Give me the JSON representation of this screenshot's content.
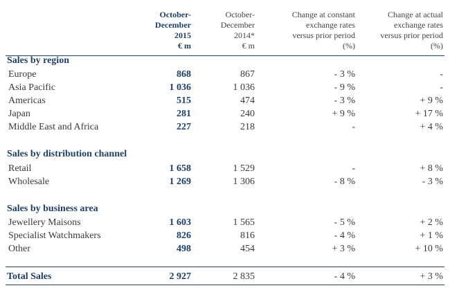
{
  "header": {
    "current": [
      "October-",
      "December",
      "2015",
      "€ m"
    ],
    "prior": [
      "October-",
      "December",
      "2014*",
      "€ m"
    ],
    "constant": [
      "Change at constant",
      "exchange rates",
      "versus prior period",
      "(%)"
    ],
    "actual": [
      "Change at actual",
      "exchange rates",
      "versus prior period",
      "(%)"
    ]
  },
  "sections": [
    {
      "title": "Sales by region",
      "rows": [
        {
          "label": "Europe",
          "current": "868",
          "prior": "867",
          "constant": "- 3 %",
          "actual": "-"
        },
        {
          "label": "Asia Pacific",
          "current": "1 036",
          "prior": "1 036",
          "constant": "- 9 %",
          "actual": "-"
        },
        {
          "label": "Americas",
          "current": "515",
          "prior": "474",
          "constant": "- 3 %",
          "actual": "+ 9 %"
        },
        {
          "label": "Japan",
          "current": "281",
          "prior": "240",
          "constant": "+ 9 %",
          "actual": "+ 17 %"
        },
        {
          "label": "Middle East and Africa",
          "current": "227",
          "prior": "218",
          "constant": "-",
          "actual": "+ 4 %"
        }
      ]
    },
    {
      "title": "Sales by distribution channel",
      "rows": [
        {
          "label": "Retail",
          "current": "1 658",
          "prior": "1 529",
          "constant": "-",
          "actual": "+ 8 %"
        },
        {
          "label": "Wholesale",
          "current": "1 269",
          "prior": "1 306",
          "constant": "- 8 %",
          "actual": "- 3 %"
        }
      ]
    },
    {
      "title": "Sales by business area",
      "rows": [
        {
          "label": "Jewellery Maisons",
          "current": "1 603",
          "prior": "1 565",
          "constant": "- 5 %",
          "actual": "+ 2 %"
        },
        {
          "label": "Specialist Watchmakers",
          "current": "826",
          "prior": "816",
          "constant": "- 4 %",
          "actual": "+ 1 %"
        },
        {
          "label": "Other",
          "current": "498",
          "prior": "454",
          "constant": "+ 3 %",
          "actual": "+ 10 %"
        }
      ]
    }
  ],
  "total": {
    "label": "Total Sales",
    "current": "2 927",
    "prior": "2 835",
    "constant": "- 4 %",
    "actual": "+ 3 %"
  }
}
